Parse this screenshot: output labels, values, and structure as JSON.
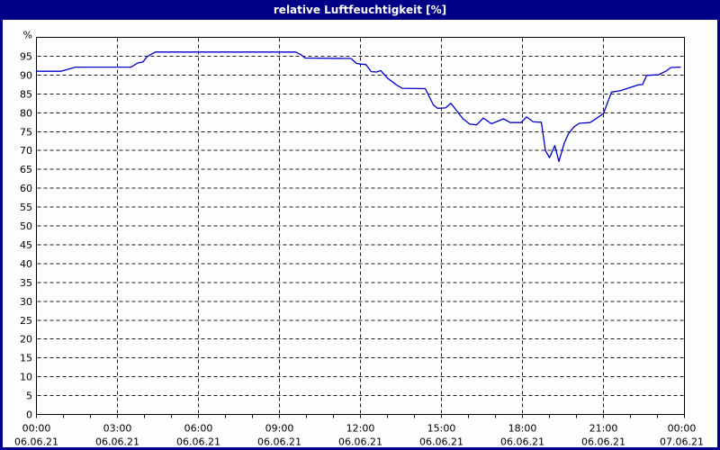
{
  "window": {
    "title": "relative Luftfeuchtigkeit [%]"
  },
  "colors": {
    "frame": "#000087",
    "title_text": "#ffffff",
    "background": "#fdfdfd",
    "plot_line": "#0000cc",
    "grid": "#1a1a1a",
    "axis": "#000000",
    "label_text": "#000000"
  },
  "chart_data": {
    "type": "line",
    "title": "relative Luftfeuchtigkeit [%]",
    "y_unit_label": "%",
    "ylabel": "",
    "xlabel": "",
    "ylim": [
      0,
      100
    ],
    "xlim_hours": [
      0,
      24
    ],
    "grid": {
      "horizontal_step_percent": 5,
      "vertical_step_hours": 3,
      "style": "dashed",
      "minor_tick_hours": 1
    },
    "legend": "none",
    "y_ticks": [
      0,
      5,
      10,
      15,
      20,
      25,
      30,
      35,
      40,
      45,
      50,
      55,
      60,
      65,
      70,
      75,
      80,
      85,
      90,
      95
    ],
    "x_ticks": [
      {
        "hour": 0,
        "time": "00:00",
        "date": "06.06.21"
      },
      {
        "hour": 3,
        "time": "03:00",
        "date": "06.06.21"
      },
      {
        "hour": 6,
        "time": "06:00",
        "date": "06.06.21"
      },
      {
        "hour": 9,
        "time": "09:00",
        "date": "06.06.21"
      },
      {
        "hour": 12,
        "time": "12:00",
        "date": "06.06.21"
      },
      {
        "hour": 15,
        "time": "15:00",
        "date": "06.06.21"
      },
      {
        "hour": 18,
        "time": "18:00",
        "date": "06.06.21"
      },
      {
        "hour": 21,
        "time": "21:00",
        "date": "06.06.21"
      },
      {
        "hour": 24,
        "time": "00:00",
        "date": "07.06.21"
      }
    ],
    "series": [
      {
        "name": "relative Luftfeuchtigkeit",
        "color": "#0000cc",
        "points_hour_percent": [
          [
            0.0,
            91.0
          ],
          [
            0.9,
            91.0
          ],
          [
            1.45,
            92.1
          ],
          [
            3.5,
            92.1
          ],
          [
            3.75,
            93.2
          ],
          [
            3.95,
            93.5
          ],
          [
            4.1,
            94.9
          ],
          [
            4.4,
            96.1
          ],
          [
            9.6,
            96.1
          ],
          [
            9.8,
            95.4
          ],
          [
            9.95,
            94.5
          ],
          [
            11.65,
            94.4
          ],
          [
            11.85,
            93.1
          ],
          [
            12.0,
            92.9
          ],
          [
            12.2,
            92.8
          ],
          [
            12.4,
            90.9
          ],
          [
            12.6,
            90.8
          ],
          [
            12.75,
            91.2
          ],
          [
            13.0,
            89.2
          ],
          [
            13.35,
            87.3
          ],
          [
            13.55,
            86.5
          ],
          [
            14.4,
            86.4
          ],
          [
            14.7,
            82.1
          ],
          [
            14.85,
            81.2
          ],
          [
            15.15,
            81.3
          ],
          [
            15.35,
            82.5
          ],
          [
            15.8,
            78.4
          ],
          [
            16.05,
            77.0
          ],
          [
            16.3,
            76.8
          ],
          [
            16.55,
            78.6
          ],
          [
            16.85,
            77.1
          ],
          [
            17.1,
            77.8
          ],
          [
            17.3,
            78.4
          ],
          [
            17.55,
            77.4
          ],
          [
            17.95,
            77.4
          ],
          [
            18.15,
            78.9
          ],
          [
            18.4,
            77.6
          ],
          [
            18.7,
            77.5
          ],
          [
            18.85,
            70.0
          ],
          [
            19.0,
            68.1
          ],
          [
            19.2,
            71.3
          ],
          [
            19.35,
            67.1
          ],
          [
            19.55,
            72.0
          ],
          [
            19.7,
            74.4
          ],
          [
            19.9,
            76.2
          ],
          [
            20.1,
            77.2
          ],
          [
            20.5,
            77.4
          ],
          [
            20.7,
            78.3
          ],
          [
            21.0,
            79.8
          ],
          [
            21.3,
            85.5
          ],
          [
            21.6,
            85.8
          ],
          [
            22.3,
            87.4
          ],
          [
            22.45,
            87.5
          ],
          [
            22.6,
            89.9
          ],
          [
            23.05,
            90.1
          ],
          [
            23.35,
            91.2
          ],
          [
            23.5,
            92.0
          ],
          [
            23.85,
            92.1
          ]
        ]
      }
    ]
  }
}
